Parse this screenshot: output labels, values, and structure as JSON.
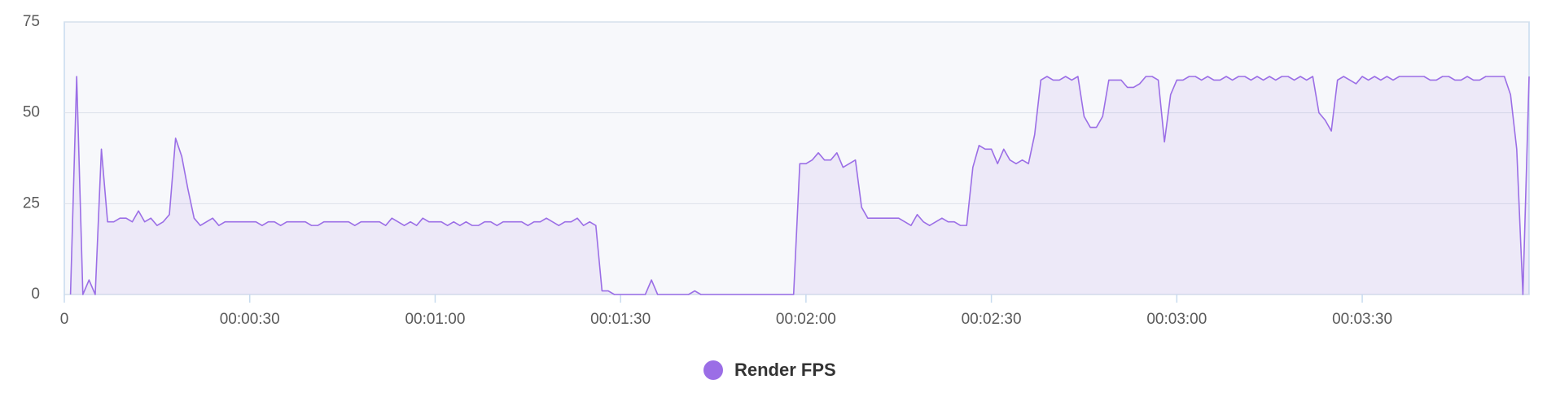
{
  "chart_data": {
    "type": "line",
    "x": [
      1,
      2,
      3,
      4,
      5,
      6,
      7,
      8,
      9,
      10,
      11,
      12,
      13,
      14,
      15,
      16,
      17,
      18,
      19,
      20,
      21,
      22,
      23,
      24,
      25,
      26,
      27,
      28,
      29,
      30,
      31,
      32,
      33,
      34,
      35,
      36,
      37,
      38,
      39,
      40,
      41,
      42,
      43,
      44,
      45,
      46,
      47,
      48,
      49,
      50,
      51,
      52,
      53,
      54,
      55,
      56,
      57,
      58,
      59,
      60,
      61,
      62,
      63,
      64,
      65,
      66,
      67,
      68,
      69,
      70,
      71,
      72,
      73,
      74,
      75,
      76,
      77,
      78,
      79,
      80,
      81,
      82,
      83,
      84,
      85,
      86,
      87,
      88,
      89,
      90,
      91,
      92,
      93,
      94,
      95,
      96,
      97,
      98,
      99,
      100,
      101,
      102,
      103,
      104,
      105,
      106,
      107,
      108,
      109,
      110,
      111,
      112,
      113,
      114,
      115,
      116,
      117,
      118,
      119,
      120,
      121,
      122,
      123,
      124,
      125,
      126,
      127,
      128,
      129,
      130,
      131,
      132,
      133,
      134,
      135,
      136,
      137,
      138,
      139,
      140,
      141,
      142,
      143,
      144,
      145,
      146,
      147,
      148,
      149,
      150,
      151,
      152,
      153,
      154,
      155,
      156,
      157,
      158,
      159,
      160,
      161,
      162,
      163,
      164,
      165,
      166,
      167,
      168,
      169,
      170,
      171,
      172,
      173,
      174,
      175,
      176,
      177,
      178,
      179,
      180,
      181,
      182,
      183,
      184,
      185,
      186,
      187,
      188,
      189,
      190,
      191,
      192,
      193,
      194,
      195,
      196,
      197,
      198,
      199,
      200,
      201,
      202,
      203,
      204,
      205,
      206,
      207,
      208,
      209,
      210,
      211,
      212,
      213,
      214,
      215,
      216,
      217,
      218,
      219,
      220,
      221,
      222,
      223,
      224,
      225,
      226,
      227,
      228,
      229,
      230,
      231,
      232,
      233,
      234,
      235,
      236,
      237
    ],
    "series": [
      {
        "name": "Render FPS",
        "color": "#9b6ee6",
        "values": [
          0,
          60,
          0,
          4,
          0,
          40,
          20,
          20,
          21,
          21,
          20,
          23,
          20,
          21,
          19,
          20,
          22,
          43,
          38,
          29,
          21,
          19,
          20,
          21,
          19,
          20,
          20,
          20,
          20,
          20,
          20,
          19,
          20,
          20,
          19,
          20,
          20,
          20,
          20,
          19,
          19,
          20,
          20,
          20,
          20,
          20,
          19,
          20,
          20,
          20,
          20,
          19,
          21,
          20,
          19,
          20,
          19,
          21,
          20,
          20,
          20,
          19,
          20,
          19,
          20,
          19,
          19,
          20,
          20,
          19,
          20,
          20,
          20,
          20,
          19,
          20,
          20,
          21,
          20,
          19,
          20,
          20,
          21,
          19,
          20,
          19,
          1,
          1,
          0,
          0,
          0,
          0,
          0,
          0,
          4,
          0,
          0,
          0,
          0,
          0,
          0,
          1,
          0,
          0,
          0,
          0,
          0,
          0,
          0,
          0,
          0,
          0,
          0,
          0,
          0,
          0,
          0,
          0,
          36,
          36,
          37,
          39,
          37,
          37,
          39,
          35,
          36,
          37,
          24,
          21,
          21,
          21,
          21,
          21,
          21,
          20,
          19,
          22,
          20,
          19,
          20,
          21,
          20,
          20,
          19,
          19,
          35,
          41,
          40,
          40,
          36,
          40,
          37,
          36,
          37,
          36,
          44,
          59,
          60,
          59,
          59,
          60,
          59,
          60,
          49,
          46,
          46,
          49,
          59,
          59,
          59,
          57,
          57,
          58,
          60,
          60,
          59,
          42,
          55,
          59,
          59,
          60,
          60,
          59,
          60,
          59,
          59,
          60,
          59,
          60,
          60,
          59,
          60,
          59,
          60,
          59,
          60,
          60,
          59,
          60,
          59,
          60,
          50,
          48,
          45,
          59,
          60,
          59,
          58,
          60,
          59,
          60,
          59,
          60,
          59,
          60,
          60,
          60,
          60,
          60,
          59,
          59,
          60,
          60,
          59,
          59,
          60,
          59,
          59,
          60,
          60,
          60,
          60,
          55,
          40,
          0,
          60
        ]
      }
    ],
    "xlim": [
      0,
      237
    ],
    "xticks": [
      0,
      {
        "value": 30,
        "label": "00:00:30"
      },
      {
        "value": 60,
        "label": "00:01:00"
      },
      {
        "value": 90,
        "label": "00:01:30"
      },
      {
        "value": 120,
        "label": "00:02:00"
      },
      {
        "value": 150,
        "label": "00:02:30"
      },
      {
        "value": 180,
        "label": "00:03:00"
      },
      {
        "value": 210,
        "label": "00:03:30"
      }
    ],
    "ylim": [
      0,
      75
    ],
    "yticks": [
      0,
      25,
      50,
      75
    ],
    "grid": true
  }
}
